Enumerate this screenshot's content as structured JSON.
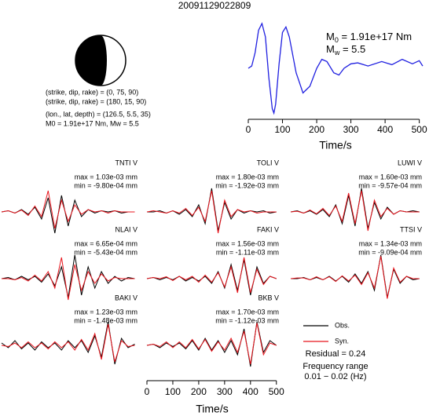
{
  "title": "20091129022809",
  "mechanism": [
    "(strike, dip, rake) = (0, 75, 90)",
    "(strike, dip, rake) = (180, 15, 90)",
    "(lon., lat, depth) = (126.5, 5.5, 35)",
    "M0 = 1.91e+17 Nm, Mw = 5.5"
  ],
  "stf_notes": [
    {
      "symbol": "M",
      "sub": "0",
      "text": " = 1.91e+17 Nm"
    },
    {
      "symbol": "M",
      "sub": "w",
      "text": " = 5.5"
    }
  ],
  "legend": [
    {
      "name": "Obs.",
      "color": "#000000"
    },
    {
      "name": "Syn.",
      "color": "#e8141c"
    }
  ],
  "residual": "Residual = 0.24",
  "frequency": [
    "Frequency range",
    "0.01 − 0.02 (Hz)"
  ],
  "chart_data": [
    {
      "type": "line",
      "color": "#1f1fe0",
      "xlabel": "Time/s",
      "xlim": [
        0,
        510
      ],
      "ylim": [
        -1.05,
        1.05
      ],
      "xticks": [
        0,
        100,
        200,
        300,
        400,
        500
      ],
      "x": [
        0,
        10,
        20,
        30,
        40,
        50,
        60,
        70,
        75,
        80,
        90,
        100,
        110,
        120,
        140,
        160,
        180,
        200,
        215,
        230,
        250,
        265,
        280,
        300,
        320,
        350,
        390,
        420,
        450,
        480,
        500,
        510
      ],
      "values": [
        0,
        0.05,
        0.35,
        0.85,
        1.0,
        0.7,
        -0.2,
        -0.9,
        -1.0,
        -0.8,
        0.1,
        0.8,
        0.92,
        0.7,
        -0.1,
        -0.55,
        -0.4,
        0.0,
        0.2,
        0.15,
        -0.1,
        -0.15,
        0.0,
        0.1,
        0.12,
        0.05,
        0.15,
        0.08,
        0.2,
        0.1,
        0.17,
        0.05
      ]
    },
    {
      "type": "waveform",
      "station": "TNTI V",
      "max": "max = 1.03e-03 mm",
      "min": "min = -9.80e-04 mm",
      "xlim": [
        0,
        525
      ],
      "ylim": [
        -1,
        1
      ],
      "x": [
        0,
        25,
        50,
        75,
        100,
        125,
        150,
        175,
        200,
        225,
        250,
        275,
        300,
        325,
        350,
        375,
        400,
        425,
        450,
        475,
        500
      ],
      "obs": [
        0,
        0.05,
        -0.05,
        0.1,
        -0.1,
        0.2,
        -0.3,
        0.6,
        -0.9,
        0.7,
        -0.6,
        0.5,
        -0.2,
        0.1,
        -0.05,
        0.05,
        0,
        0.05,
        -0.05,
        0,
        0
      ],
      "syn": [
        0,
        0.05,
        -0.05,
        0.08,
        -0.15,
        0.25,
        -0.2,
        0.9,
        -0.7,
        0.5,
        -0.4,
        0.3,
        -0.1,
        0.1,
        0,
        0.05,
        -0.05,
        0.05,
        0,
        0,
        0
      ]
    },
    {
      "type": "waveform",
      "station": "TOLI V",
      "max": "max = 1.80e-03 mm",
      "min": "min = -1.92e-03 mm",
      "xlim": [
        0,
        525
      ],
      "ylim": [
        -1,
        1
      ],
      "x": [
        0,
        25,
        50,
        75,
        100,
        125,
        150,
        175,
        200,
        225,
        250,
        275,
        300,
        325,
        350,
        375,
        400,
        425,
        450,
        475,
        500
      ],
      "obs": [
        0,
        0,
        0.05,
        -0.05,
        0.05,
        -0.1,
        0.1,
        -0.2,
        0.3,
        -0.5,
        1.0,
        -0.8,
        0.4,
        -0.3,
        0.1,
        -0.05,
        0.05,
        0,
        0.05,
        -0.05,
        0
      ],
      "syn": [
        0,
        0.05,
        0,
        -0.05,
        0.05,
        -0.05,
        0.15,
        -0.15,
        0.2,
        -0.4,
        0.9,
        -0.9,
        0.5,
        -0.2,
        0.1,
        0,
        0.05,
        -0.05,
        0,
        0,
        0
      ]
    },
    {
      "type": "waveform",
      "station": "LUWI V",
      "max": "max = 1.60e-03 mm",
      "min": "min = -9.57e-04 mm",
      "xlim": [
        0,
        525
      ],
      "ylim": [
        -1,
        1
      ],
      "x": [
        0,
        25,
        50,
        75,
        100,
        125,
        150,
        175,
        200,
        225,
        250,
        275,
        300,
        325,
        350,
        375,
        400,
        425,
        450,
        475,
        500
      ],
      "obs": [
        0,
        0.05,
        -0.05,
        0.05,
        -0.1,
        0.1,
        -0.2,
        0.3,
        -0.5,
        0.7,
        -0.6,
        1.0,
        -0.7,
        0.4,
        -0.3,
        0.2,
        -0.1,
        0.05,
        0,
        0.05,
        0
      ],
      "syn": [
        0,
        0.03,
        -0.05,
        0.08,
        -0.08,
        0.15,
        -0.15,
        0.25,
        -0.4,
        0.8,
        -0.5,
        0.9,
        -0.8,
        0.5,
        -0.2,
        0.15,
        -0.1,
        0.05,
        0,
        0,
        0
      ]
    },
    {
      "type": "waveform",
      "station": "NLAI V",
      "max": "max = 6.65e-04 mm",
      "min": "min = -5.43e-04 mm",
      "xlim": [
        0,
        525
      ],
      "ylim": [
        -1,
        1
      ],
      "x": [
        0,
        25,
        50,
        75,
        100,
        125,
        150,
        175,
        200,
        225,
        250,
        275,
        300,
        325,
        350,
        375,
        400,
        425,
        450,
        475,
        500
      ],
      "obs": [
        0,
        0.05,
        -0.05,
        0.1,
        -0.05,
        0.1,
        -0.15,
        0.2,
        -0.3,
        0.5,
        -0.8,
        1.0,
        -0.7,
        0.5,
        -0.4,
        0.3,
        -0.2,
        0.1,
        -0.1,
        0.05,
        0
      ],
      "syn": [
        0,
        0,
        -0.05,
        0.05,
        -0.1,
        0.15,
        -0.1,
        0.3,
        -0.4,
        0.9,
        -0.9,
        0.6,
        -0.5,
        0.3,
        -0.2,
        0.2,
        -0.1,
        0.05,
        0,
        0,
        0
      ]
    },
    {
      "type": "waveform",
      "station": "FAKI V",
      "max": "max = 1.56e-03 mm",
      "min": "min = -1.11e-03 mm",
      "xlim": [
        0,
        525
      ],
      "ylim": [
        -1,
        1
      ],
      "x": [
        0,
        25,
        50,
        75,
        100,
        125,
        150,
        175,
        200,
        225,
        250,
        275,
        300,
        325,
        350,
        375,
        400,
        425,
        450,
        475,
        500
      ],
      "obs": [
        0,
        0.05,
        -0.05,
        0.05,
        -0.05,
        0.1,
        -0.1,
        0.05,
        -0.1,
        0.1,
        -0.2,
        0.3,
        -0.4,
        0.6,
        -0.5,
        0.8,
        -0.7,
        0.5,
        -0.2,
        0.1,
        0
      ],
      "syn": [
        0,
        0.05,
        0,
        0.08,
        -0.08,
        0.1,
        -0.05,
        0.1,
        -0.15,
        0.15,
        -0.15,
        0.25,
        -0.35,
        0.5,
        -0.6,
        0.9,
        -0.6,
        0.4,
        -0.25,
        0.1,
        0
      ]
    },
    {
      "type": "waveform",
      "station": "TTSI V",
      "max": "max = 1.34e-03 mm",
      "min": "min = -9.09e-04 mm",
      "xlim": [
        0,
        525
      ],
      "ylim": [
        -1,
        1
      ],
      "x": [
        0,
        25,
        50,
        75,
        100,
        125,
        150,
        175,
        200,
        225,
        250,
        275,
        300,
        325,
        350,
        375,
        400,
        425,
        450,
        475,
        500
      ],
      "obs": [
        0,
        0,
        0.05,
        -0.05,
        0.05,
        -0.05,
        0.1,
        -0.1,
        0.1,
        -0.15,
        0.2,
        -0.2,
        0.3,
        -0.5,
        1.0,
        -0.8,
        0.4,
        -0.2,
        0.1,
        -0.05,
        0
      ],
      "syn": [
        0,
        0.03,
        0.03,
        -0.05,
        0.08,
        -0.05,
        0.08,
        -0.12,
        0.12,
        -0.1,
        0.15,
        -0.25,
        0.25,
        -0.4,
        0.95,
        -0.85,
        0.45,
        -0.15,
        0.1,
        0,
        0
      ]
    },
    {
      "type": "waveform",
      "station": "BAKI V",
      "max": "max = 1.23e-03 mm",
      "min": "min = -1.48e-03 mm",
      "xlim": [
        0,
        525
      ],
      "ylim": [
        -1,
        1
      ],
      "x": [
        0,
        25,
        50,
        75,
        100,
        125,
        150,
        175,
        200,
        225,
        250,
        275,
        300,
        325,
        350,
        375,
        400,
        425,
        450,
        475,
        500
      ],
      "obs": [
        0.1,
        -0.1,
        0.2,
        -0.15,
        0.1,
        -0.2,
        0.15,
        -0.1,
        0.1,
        -0.2,
        0.2,
        -0.1,
        0.2,
        -0.3,
        0.4,
        -0.5,
        1.0,
        -0.8,
        0.3,
        -0.1,
        0.05
      ],
      "syn": [
        0,
        -0.05,
        0.1,
        -0.1,
        0.15,
        -0.1,
        0.1,
        -0.15,
        0.15,
        -0.1,
        0.15,
        -0.2,
        0.25,
        -0.2,
        0.5,
        -0.6,
        0.9,
        -0.7,
        0.2,
        -0.05,
        0
      ]
    },
    {
      "type": "waveform",
      "station": "BKB V",
      "max": "max = 1.70e-03 mm",
      "min": "min = -1.12e-03 mm",
      "xlim": [
        0,
        525
      ],
      "ylim": [
        -1,
        1
      ],
      "xticks": [
        0,
        100,
        200,
        300,
        400,
        500
      ],
      "xlabel": "Time/s",
      "x": [
        0,
        25,
        50,
        75,
        100,
        125,
        150,
        175,
        200,
        225,
        250,
        275,
        300,
        325,
        350,
        375,
        400,
        425,
        450,
        475,
        500
      ],
      "obs": [
        0,
        0.05,
        -0.1,
        0.1,
        -0.05,
        0.1,
        -0.15,
        0.2,
        -0.2,
        0.3,
        -0.2,
        0.2,
        -0.3,
        0.2,
        -0.4,
        0.7,
        -0.9,
        1.0,
        -0.3,
        0.2,
        0
      ],
      "syn": [
        0,
        0.05,
        -0.05,
        0.15,
        -0.1,
        0.15,
        -0.1,
        0.25,
        -0.15,
        0.25,
        -0.25,
        0.15,
        -0.2,
        0.3,
        -0.3,
        0.6,
        -0.8,
        0.95,
        -0.4,
        0.1,
        0
      ]
    }
  ]
}
